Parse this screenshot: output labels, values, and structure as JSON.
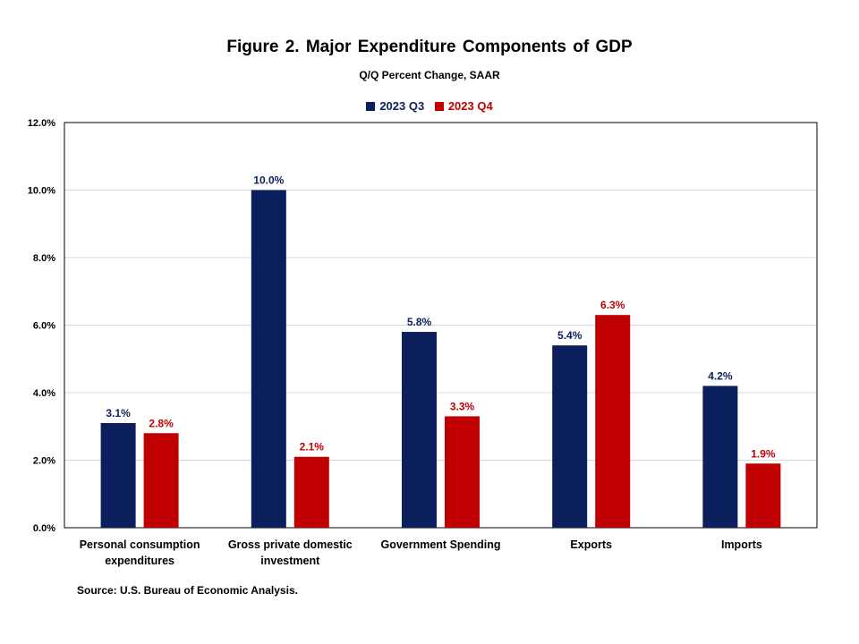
{
  "title": "Figure 2. Major Expenditure Components of GDP",
  "subtitle": "Q/Q Percent Change, SAAR",
  "source": "Source: U.S. Bureau of Economic Analysis.",
  "colors": {
    "q3": "#0b1f5c",
    "q4": "#c00000"
  },
  "chart_data": {
    "type": "bar",
    "title": "Figure 2. Major Expenditure Components of GDP",
    "subtitle": "Q/Q Percent Change, SAAR",
    "categories": [
      [
        "Personal consumption",
        "expenditures"
      ],
      [
        "Gross private domestic",
        "investment"
      ],
      [
        "Government Spending"
      ],
      [
        "Exports"
      ],
      [
        "Imports"
      ]
    ],
    "series": [
      {
        "name": "2023 Q3",
        "values": [
          3.1,
          10.0,
          5.8,
          5.4,
          4.2
        ],
        "labels": [
          "3.1%",
          "10.0%",
          "5.8%",
          "5.4%",
          "4.2%"
        ]
      },
      {
        "name": "2023 Q4",
        "values": [
          2.8,
          2.1,
          3.3,
          6.3,
          1.9
        ],
        "labels": [
          "2.8%",
          "2.1%",
          "3.3%",
          "6.3%",
          "1.9%"
        ]
      }
    ],
    "ylim": [
      0,
      12
    ],
    "yticks": [
      0,
      2,
      4,
      6,
      8,
      10,
      12
    ],
    "ytick_labels": [
      "0.0%",
      "2.0%",
      "4.0%",
      "6.0%",
      "8.0%",
      "10.0%",
      "12.0%"
    ],
    "grid": true,
    "legend_position": "top-center"
  }
}
